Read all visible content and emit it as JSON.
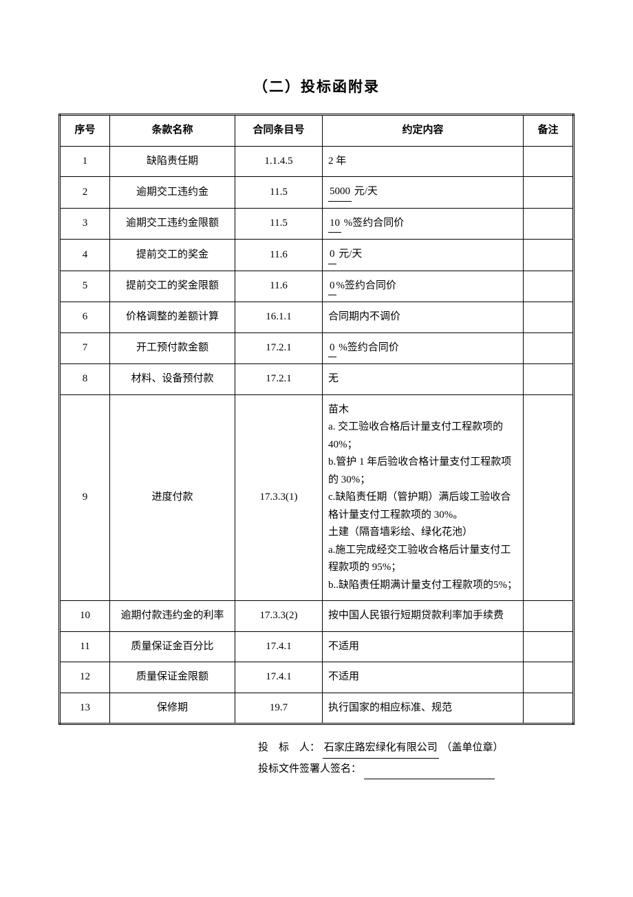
{
  "title": "（二）投标函附录",
  "headers": {
    "seq": "序号",
    "name": "条款名称",
    "ref": "合同条目号",
    "content": "约定内容",
    "remark": "备注"
  },
  "rows": [
    {
      "seq": "1",
      "name": "缺陷责任期",
      "ref": "1.1.4.5",
      "content": "2 年",
      "remark": ""
    },
    {
      "seq": "2",
      "name": "逾期交工违约金",
      "ref": "11.5",
      "content": "",
      "underline_val": "5000",
      "suffix": " 元/天",
      "remark": ""
    },
    {
      "seq": "3",
      "name": "逾期交工违约金限额",
      "ref": "11.5",
      "content": "",
      "underline_val": "10",
      "suffix": " %签约合同价",
      "remark": ""
    },
    {
      "seq": "4",
      "name": "提前交工的奖金",
      "ref": "11.6",
      "content": "",
      "underline_val": "0",
      "suffix": " 元/天",
      "remark": ""
    },
    {
      "seq": "5",
      "name": "提前交工的奖金限额",
      "ref": "11.6",
      "content": "",
      "underline_val": "0",
      "suffix": "%签约合同价",
      "remark": ""
    },
    {
      "seq": "6",
      "name": "价格调整的差额计算",
      "ref": "16.1.1",
      "content": "合同期内不调价",
      "remark": ""
    },
    {
      "seq": "7",
      "name": "开工预付款金额",
      "ref": "17.2.1",
      "content": "",
      "underline_val": "0",
      "suffix": " %签约合同价",
      "remark": ""
    },
    {
      "seq": "8",
      "name": "材料、设备预付款",
      "ref": "17.2.1",
      "content": "无",
      "remark": ""
    },
    {
      "seq": "9",
      "name": "进度付款",
      "ref": "17.3.3(1)",
      "multiline": true,
      "lines": [
        "苗木",
        "a. 交工验收合格后计量支付工程款项的40%；",
        "b.管护 1 年后验收合格计量支付工程款项的 30%；",
        "c.缺陷责任期（管护期）满后竣工验收合格计量支付工程款项的 30%。",
        "土建（隔音墙彩绘、绿化花池）",
        "a.施工完成经交工验收合格后计量支付工程款项的 95%；",
        "b..缺陷责任期满计量支付工程款项的5%；"
      ],
      "remark": ""
    },
    {
      "seq": "10",
      "name": "逾期付款违约金的利率",
      "ref": "17.3.3(2)",
      "content": "按中国人民银行短期贷款利率加手续费",
      "remark": ""
    },
    {
      "seq": "11",
      "name": "质量保证金百分比",
      "ref": "17.4.1",
      "content": "不适用",
      "remark": ""
    },
    {
      "seq": "12",
      "name": "质量保证金限额",
      "ref": "17.4.1",
      "content": "不适用",
      "remark": ""
    },
    {
      "seq": "13",
      "name": "保修期",
      "ref": "19.7",
      "content": "执行国家的相应标准、规范",
      "remark": ""
    }
  ],
  "footer": {
    "bidder_label": "投　标　人：",
    "bidder_name": "石家庄路宏绿化有限公司",
    "bidder_suffix": "（盖单位章）",
    "signer_label": "投标文件签署人签名：",
    "signer_blank": ""
  }
}
